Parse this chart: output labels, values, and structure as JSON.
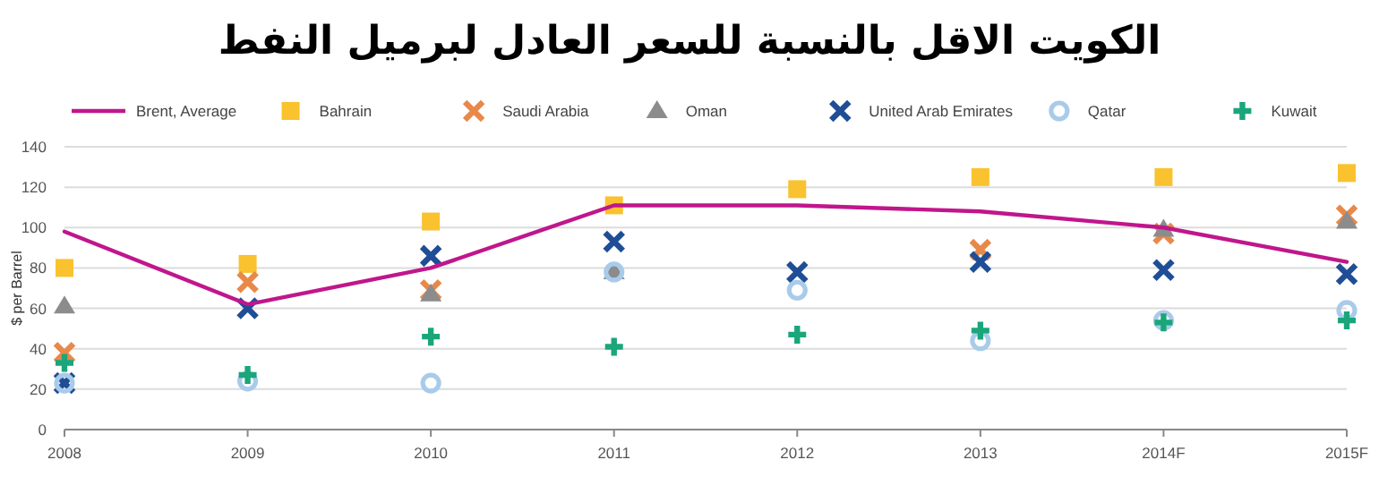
{
  "chart_data": {
    "type": "scatter",
    "title": "الكويت الاقل بالنسبة للسعر العادل لبرميل النفط",
    "ylabel": "$ per Barrel",
    "categories": [
      "2008",
      "2009",
      "2010",
      "2011",
      "2012",
      "2013",
      "2014F",
      "2015F"
    ],
    "ylim": [
      0,
      140
    ],
    "yticks": [
      0,
      20,
      40,
      60,
      80,
      100,
      120,
      140
    ],
    "grid": "y",
    "legend": "top",
    "series": [
      {
        "name": "Brent, Average",
        "type": "line",
        "marker": "none",
        "color": "#c0168c",
        "values": [
          98,
          62,
          80,
          111,
          111,
          108,
          100,
          83
        ]
      },
      {
        "name": "Bahrain",
        "marker": "square",
        "color": "#f9c22e",
        "values": [
          80,
          82,
          103,
          111,
          119,
          125,
          125,
          127
        ]
      },
      {
        "name": "Saudi Arabia",
        "marker": "cross",
        "color": "#e8894a",
        "values": [
          38,
          73,
          69,
          null,
          null,
          89,
          97,
          106
        ]
      },
      {
        "name": "Oman",
        "marker": "triangle",
        "color": "#8c8c8c",
        "values": [
          61,
          null,
          67,
          78,
          null,
          null,
          99,
          103
        ]
      },
      {
        "name": "United Arab Emirates",
        "marker": "cross",
        "color": "#1f4e96",
        "values": [
          23,
          60,
          86,
          93,
          78,
          83,
          79,
          77
        ]
      },
      {
        "name": "Qatar",
        "marker": "circle",
        "color": "#a9cbea",
        "values": [
          23,
          24,
          23,
          78,
          69,
          44,
          54,
          59
        ]
      },
      {
        "name": "Kuwait",
        "marker": "plus",
        "color": "#1aa67a",
        "values": [
          33,
          27,
          46,
          41,
          47,
          49,
          53,
          54
        ]
      }
    ]
  }
}
